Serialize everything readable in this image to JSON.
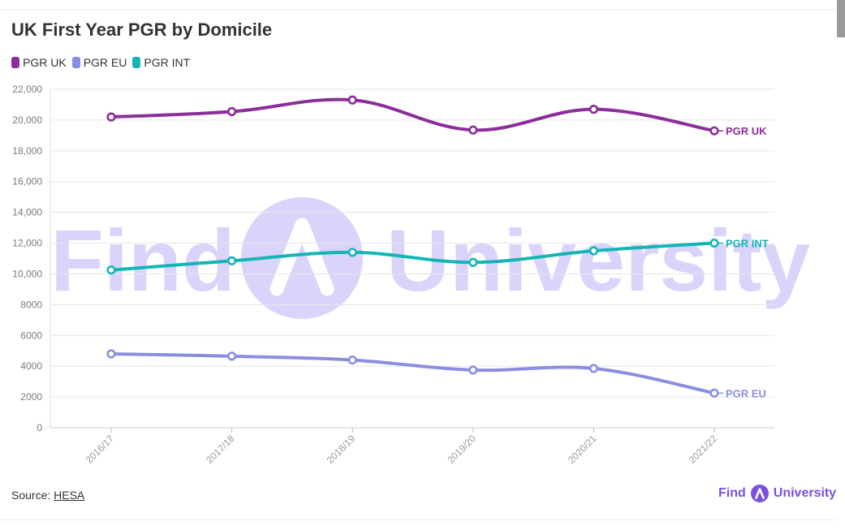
{
  "chart_data": {
    "type": "line",
    "title": "UK First Year PGR by Domicile",
    "xlabel": "",
    "ylabel": "",
    "categories": [
      "2016/17",
      "2017/18",
      "2018/19",
      "2019/20",
      "2020/21",
      "2021/22"
    ],
    "ylim": [
      0,
      22000
    ],
    "yticks": [
      0,
      2000,
      4000,
      6000,
      8000,
      10000,
      12000,
      14000,
      16000,
      18000,
      20000,
      22000
    ],
    "ytick_labels": [
      "0",
      "2000",
      "4000",
      "6000",
      "8000",
      "10,000",
      "12,000",
      "14,000",
      "16,000",
      "18,000",
      "20,000",
      "22,000"
    ],
    "grid": true,
    "legend_position": "top-left",
    "series": [
      {
        "name": "PGR UK",
        "end_label": "PGR UK",
        "color": "#8b2e9a",
        "values": [
          20200,
          20550,
          21300,
          19350,
          20700,
          19300
        ]
      },
      {
        "name": "PGR EU",
        "end_label": "PGR EU",
        "color": "#8a8ee0",
        "values": [
          4800,
          4650,
          4400,
          3750,
          3850,
          2250
        ]
      },
      {
        "name": "PGR INT",
        "end_label": "PGR INT",
        "color": "#14b5b5",
        "values": [
          10250,
          10850,
          11400,
          10750,
          11500,
          12000
        ]
      }
    ]
  },
  "watermark": {
    "text_left": "Find",
    "text_right": "University",
    "color": "#dcd3fb"
  },
  "source": {
    "label": "Source: ",
    "link_text": "HESA"
  },
  "brand": {
    "left_text": "Find",
    "right_text": "University",
    "color": "#7b4fe0"
  }
}
